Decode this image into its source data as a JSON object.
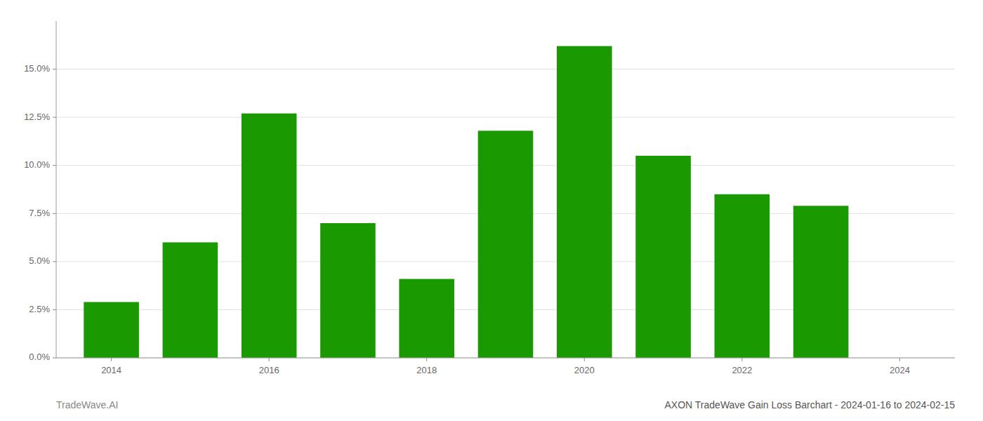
{
  "chart_data": {
    "type": "bar",
    "title": "AXON TradeWave Gain Loss Barchart - 2024-01-16 to 2024-02-15",
    "annotations": [
      "TradeWave.AI"
    ],
    "x": [
      2014,
      2015,
      2016,
      2017,
      2018,
      2019,
      2020,
      2021,
      2022,
      2023
    ],
    "values": [
      0.029,
      0.06,
      0.127,
      0.07,
      0.041,
      0.118,
      0.162,
      0.105,
      0.085,
      0.079
    ],
    "color": "#1a9a00",
    "xlim": [
      2013.3,
      2024.7
    ],
    "xticks": [
      2014,
      2016,
      2018,
      2020,
      2022,
      2024
    ],
    "ylim": [
      0,
      0.175
    ],
    "yticks": [
      {
        "value": 0.0,
        "label": "0.0%"
      },
      {
        "value": 0.025,
        "label": "2.5%"
      },
      {
        "value": 0.05,
        "label": "5.0%"
      },
      {
        "value": 0.075,
        "label": "7.5%"
      },
      {
        "value": 0.1,
        "label": "10.0%"
      },
      {
        "value": 0.125,
        "label": "12.5%"
      },
      {
        "value": 0.15,
        "label": "15.0%"
      }
    ],
    "grid": true
  }
}
